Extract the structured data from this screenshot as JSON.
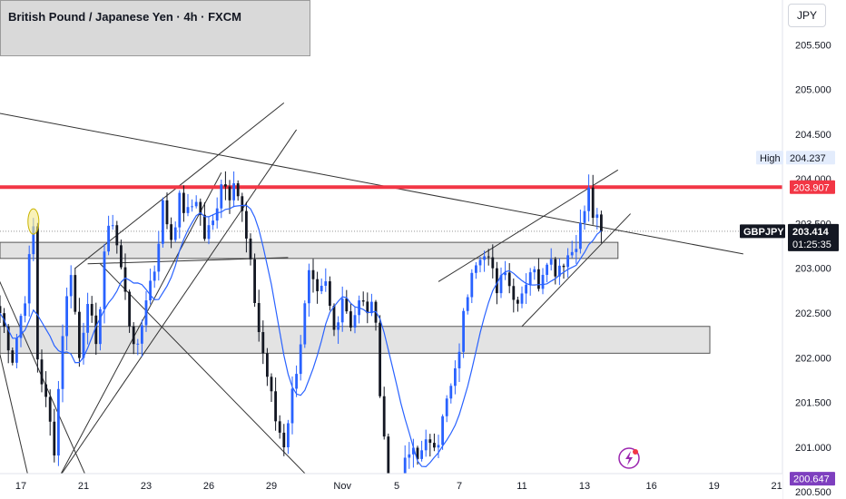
{
  "header": {
    "title": "British Pound / Japanese Yen · 4h · FXCM",
    "currency": "JPY"
  },
  "colors": {
    "up": "#2962ff",
    "down": "#131722",
    "resistance": "#f23645",
    "support": "#7e3fbf",
    "ma": "#2962ff",
    "zone_fill": "#d9d9d9",
    "zone_border": "#555555",
    "trendline": "#333333",
    "highlight": "#f5e98a",
    "ticker_bg": "#131722"
  },
  "chart_data": {
    "type": "candlestick",
    "symbol": "GBPJPY",
    "timeframe": "4h",
    "ylim": [
      200.42,
      206.0
    ],
    "y_ticks": [
      205.5,
      205.0,
      204.5,
      204.0,
      203.5,
      203.0,
      202.5,
      202.0,
      201.5,
      201.0,
      200.5
    ],
    "y_tick_labels": [
      "205.500",
      "205.000",
      "204.500",
      "204.000",
      "203.500",
      "203.000",
      "202.500",
      "202.000",
      "201.500",
      "201.000",
      "200.500"
    ],
    "x_ticks": [
      "17",
      "21",
      "23",
      "26",
      "29",
      "Nov",
      "5",
      "7",
      "11",
      "13",
      "16",
      "19",
      "21"
    ],
    "x_tick_index": [
      5,
      20,
      35,
      50,
      65,
      82,
      95,
      110,
      125,
      140,
      156,
      171,
      186
    ],
    "candle_count": 187,
    "horizontal_levels": [
      {
        "name": "resistance",
        "value": 203.907,
        "label": "203.907"
      },
      {
        "name": "support",
        "value": 200.647,
        "label": "200.647"
      }
    ],
    "zones": [
      {
        "name": "upper-zone",
        "top": 203.29,
        "bottom": 203.11,
        "start_index": -10,
        "end_index": 148
      },
      {
        "name": "lower-zone",
        "top": 202.35,
        "bottom": 202.05,
        "start_index": -10,
        "end_index": 170
      }
    ],
    "trendlines": [
      {
        "from": [
          -10,
          204.82
        ],
        "to": [
          178,
          203.16
        ]
      },
      {
        "from": [
          -10,
          204.05
        ],
        "to": [
          8,
          200.42
        ]
      },
      {
        "from": [
          -10,
          203.9
        ],
        "to": [
          23,
          200.42
        ]
      },
      {
        "from": [
          14,
          200.65
        ],
        "to": [
          53,
          204.07
        ]
      },
      {
        "from": [
          18,
          203.0
        ],
        "to": [
          68,
          204.85
        ]
      },
      {
        "from": [
          14,
          200.65
        ],
        "to": [
          71,
          204.55
        ]
      },
      {
        "from": [
          21,
          203.05
        ],
        "to": [
          69,
          203.12
        ]
      },
      {
        "from": [
          24,
          203.05
        ],
        "to": [
          79,
          200.42
        ]
      },
      {
        "from": [
          105,
          202.85
        ],
        "to": [
          148,
          204.1
        ]
      },
      {
        "from": [
          125,
          202.35
        ],
        "to": [
          151,
          203.61
        ]
      }
    ],
    "high_marker": {
      "label": "High",
      "value": 204.237,
      "value_label": "204.237"
    },
    "last_price": {
      "label": "GBPJPY",
      "value": 203.414,
      "value_label": "203.414",
      "countdown": "01:25:35"
    },
    "anchors": [
      [
        0,
        202.5
      ],
      [
        3,
        202.0
      ],
      [
        6,
        202.7
      ],
      [
        8,
        203.45
      ],
      [
        9,
        202.0
      ],
      [
        11,
        201.5
      ],
      [
        13,
        201.0
      ],
      [
        15,
        202.3
      ],
      [
        17,
        203.0
      ],
      [
        19,
        202.0
      ],
      [
        21,
        202.7
      ],
      [
        23,
        202.05
      ],
      [
        25,
        203.2
      ],
      [
        27,
        203.55
      ],
      [
        29,
        203.0
      ],
      [
        31,
        202.4
      ],
      [
        33,
        202.05
      ],
      [
        35,
        202.7
      ],
      [
        37,
        203.0
      ],
      [
        39,
        203.7
      ],
      [
        41,
        203.35
      ],
      [
        43,
        203.75
      ],
      [
        45,
        203.6
      ],
      [
        47,
        203.8
      ],
      [
        49,
        203.35
      ],
      [
        51,
        203.5
      ],
      [
        53,
        204.0
      ],
      [
        55,
        203.85
      ],
      [
        56,
        204.05
      ],
      [
        58,
        203.6
      ],
      [
        60,
        203.0
      ],
      [
        62,
        202.3
      ],
      [
        64,
        201.8
      ],
      [
        66,
        201.3
      ],
      [
        68,
        201.05
      ],
      [
        70,
        201.6
      ],
      [
        72,
        202.2
      ],
      [
        74,
        202.9
      ],
      [
        76,
        202.65
      ],
      [
        78,
        202.8
      ],
      [
        80,
        202.3
      ],
      [
        82,
        202.7
      ],
      [
        84,
        202.4
      ],
      [
        86,
        202.6
      ],
      [
        88,
        202.55
      ],
      [
        90,
        202.5
      ],
      [
        91,
        201.6
      ],
      [
        93,
        200.6
      ],
      [
        95,
        200.4
      ],
      [
        97,
        200.8
      ],
      [
        99,
        201.0
      ],
      [
        101,
        200.9
      ],
      [
        103,
        201.1
      ],
      [
        105,
        201.1
      ],
      [
        107,
        201.5
      ],
      [
        109,
        201.8
      ],
      [
        111,
        202.45
      ],
      [
        113,
        203.05
      ],
      [
        115,
        203.2
      ],
      [
        117,
        203.05
      ],
      [
        119,
        202.8
      ],
      [
        121,
        203.05
      ],
      [
        123,
        202.65
      ],
      [
        125,
        202.75
      ],
      [
        127,
        203.0
      ],
      [
        129,
        202.85
      ],
      [
        131,
        203.15
      ],
      [
        133,
        203.0
      ],
      [
        135,
        203.1
      ],
      [
        137,
        203.2
      ],
      [
        139,
        203.45
      ],
      [
        141,
        203.85
      ],
      [
        142,
        203.6
      ],
      [
        144,
        203.414
      ]
    ],
    "highlight_index": 8
  }
}
